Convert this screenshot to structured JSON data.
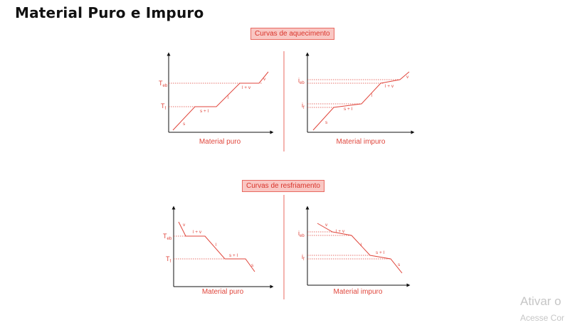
{
  "title": "Material Puro e Impuro",
  "sections": {
    "heating": {
      "label": "Curvas de aquecimento"
    },
    "cooling": {
      "label": "Curvas de resfriamento"
    }
  },
  "graphs": {
    "heating_pure": {
      "caption": "Material puro",
      "y_labels": {
        "teb": "T",
        "teb_sub": "eb",
        "tf": "T",
        "tf_sub": "f"
      },
      "phases": {
        "s": "s",
        "sl": "s + l",
        "l": "l",
        "lv": "l + v",
        "v": "v"
      }
    },
    "heating_impure": {
      "caption": "Material impuro",
      "y_labels": {
        "teb": "i",
        "teb_sub": "eb",
        "tf": "i",
        "tf_sub": "f"
      },
      "phases": {
        "s": "s",
        "sl": "s + l",
        "l": "l",
        "lv": "l + v",
        "v": "v"
      }
    },
    "cooling_pure": {
      "caption": "Material puro",
      "y_labels": {
        "teb": "T",
        "teb_sub": "eb",
        "tf": "T",
        "tf_sub": "f"
      },
      "phases": {
        "v": "v",
        "lv": "l + v",
        "l": "l",
        "sl": "s + l",
        "s": "s"
      }
    },
    "cooling_impure": {
      "caption": "Material impuro",
      "y_labels": {
        "teb": "i",
        "teb_sub": "eb",
        "tf": "i",
        "tf_sub": "f"
      },
      "phases": {
        "v": "v",
        "lv": "l + v",
        "l": "l",
        "sl": "s + l",
        "s": "s"
      }
    }
  },
  "watermark": {
    "line1": "Ativar o",
    "line2": "Acesse Cor"
  },
  "colors": {
    "accent": "#e0463c",
    "axis": "#111111",
    "label_fill": "#f9c7c3"
  }
}
